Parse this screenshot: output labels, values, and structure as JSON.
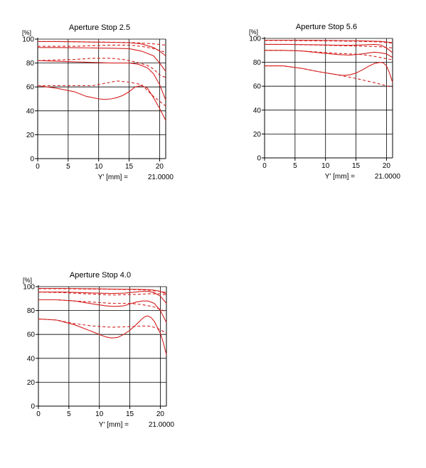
{
  "chart_data": [
    {
      "type": "line",
      "title": "Aperture Stop 2.5",
      "ylabel": "[%]",
      "xlabel": "Y' [mm] =",
      "xvalue_label": "21.0000",
      "xlim": [
        0,
        21
      ],
      "ylim": [
        0,
        100
      ],
      "xticks": [
        0,
        5,
        10,
        15,
        20
      ],
      "yticks": [
        0,
        20,
        40,
        60,
        80,
        100
      ],
      "grid": true,
      "color": "#d42020",
      "series": [
        {
          "style": "solid",
          "x": [
            0,
            3,
            6,
            9,
            12,
            15,
            17,
            19,
            20,
            21
          ],
          "y": [
            98,
            98,
            97.8,
            97.5,
            97.3,
            97,
            96,
            93,
            90,
            86
          ]
        },
        {
          "style": "dashed",
          "x": [
            0,
            3,
            6,
            9,
            12,
            15,
            17,
            19,
            21
          ],
          "y": [
            98,
            98,
            97.8,
            97.6,
            97.4,
            97.2,
            96.7,
            96,
            95
          ]
        },
        {
          "style": "solid",
          "x": [
            0,
            3,
            6,
            9,
            12,
            15,
            17,
            19,
            20,
            21
          ],
          "y": [
            93,
            93,
            92.8,
            92.6,
            92.4,
            92,
            90,
            86,
            80,
            73
          ]
        },
        {
          "style": "dashed",
          "x": [
            0,
            3,
            6,
            9,
            12,
            15,
            17,
            19,
            21
          ],
          "y": [
            94,
            94,
            94,
            94.5,
            95,
            95,
            94,
            92,
            89
          ]
        },
        {
          "style": "solid",
          "x": [
            0,
            3,
            6,
            9,
            12,
            15,
            16.5,
            18,
            19,
            20,
            21
          ],
          "y": [
            82,
            81.5,
            81,
            80.5,
            80,
            80,
            79,
            76,
            71,
            62,
            49
          ]
        },
        {
          "style": "dashed",
          "x": [
            0,
            3,
            6,
            9,
            12,
            14,
            16,
            18,
            19,
            20,
            21
          ],
          "y": [
            82,
            82.5,
            83,
            84,
            84,
            83,
            81,
            78,
            75,
            70,
            68
          ]
        },
        {
          "style": "solid",
          "x": [
            0,
            3,
            6,
            8,
            10,
            11,
            12,
            13,
            14,
            15,
            16,
            17,
            18,
            19,
            20,
            21
          ],
          "y": [
            61,
            59,
            56,
            52,
            50,
            49.5,
            50,
            51,
            53,
            56,
            60,
            61,
            59,
            51,
            42,
            32
          ]
        },
        {
          "style": "dashed",
          "x": [
            0,
            3,
            6,
            9,
            11,
            13,
            15,
            16,
            17,
            18,
            19,
            20,
            21
          ],
          "y": [
            61,
            61,
            61,
            61,
            63,
            65,
            64,
            63,
            62,
            57,
            52,
            48,
            44
          ]
        }
      ]
    },
    {
      "type": "line",
      "title": "Aperture Stop 5.6",
      "ylabel": "[%]",
      "xlabel": "Y' [mm] =",
      "xvalue_label": "21.0000",
      "xlim": [
        0,
        21
      ],
      "ylim": [
        0,
        100
      ],
      "xticks": [
        0,
        5,
        10,
        15,
        20
      ],
      "yticks": [
        0,
        20,
        40,
        60,
        80,
        100
      ],
      "grid": true,
      "color": "#d42020",
      "series": [
        {
          "style": "solid",
          "x": [
            0,
            4,
            8,
            12,
            16,
            19,
            21
          ],
          "y": [
            98.5,
            98.5,
            98.4,
            98.2,
            98,
            97.5,
            96.5
          ]
        },
        {
          "style": "dashed",
          "x": [
            0,
            4,
            8,
            12,
            16,
            19,
            21
          ],
          "y": [
            98.3,
            98.2,
            98,
            97.8,
            97.5,
            97,
            96
          ]
        },
        {
          "style": "solid",
          "x": [
            0,
            4,
            8,
            12,
            14,
            16,
            18,
            19,
            20,
            21
          ],
          "y": [
            95,
            95,
            94.7,
            94.3,
            94.2,
            94.5,
            95,
            94.5,
            92,
            88
          ]
        },
        {
          "style": "dashed",
          "x": [
            0,
            4,
            8,
            12,
            16,
            19,
            21
          ],
          "y": [
            95,
            95,
            94.5,
            94,
            93.5,
            93,
            92
          ]
        },
        {
          "style": "solid",
          "x": [
            0,
            3,
            6,
            9,
            12,
            14,
            16,
            18,
            19,
            20,
            21
          ],
          "y": [
            90,
            90,
            89.5,
            88,
            86.5,
            86,
            87,
            88.5,
            88,
            87,
            84
          ]
        },
        {
          "style": "dashed",
          "x": [
            0,
            3,
            6,
            9,
            12,
            14,
            16,
            18,
            20,
            21
          ],
          "y": [
            90,
            90,
            89.5,
            88.5,
            87.5,
            87,
            86.5,
            85,
            83,
            82
          ]
        },
        {
          "style": "solid",
          "x": [
            0,
            3,
            6,
            9,
            12,
            13,
            14,
            15,
            16,
            17,
            18,
            19,
            19.5,
            20,
            20.5,
            21
          ],
          "y": [
            77,
            77,
            75,
            72,
            69.5,
            69,
            69.5,
            71,
            73.5,
            76.5,
            79,
            80,
            79.5,
            77,
            71,
            63
          ]
        },
        {
          "style": "dashed",
          "x": [
            0,
            3,
            6,
            9,
            12,
            15,
            18,
            21
          ],
          "y": [
            77,
            77,
            75,
            72,
            69.5,
            66.5,
            63,
            59
          ]
        }
      ]
    },
    {
      "type": "line",
      "title": "Aperture Stop 4.0",
      "ylabel": "[%]",
      "xlabel": "Y' [mm] =",
      "xvalue_label": "21.0000",
      "xlim": [
        0,
        21
      ],
      "ylim": [
        0,
        100
      ],
      "xticks": [
        0,
        5,
        10,
        15,
        20
      ],
      "yticks": [
        0,
        20,
        40,
        60,
        80,
        100
      ],
      "grid": true,
      "color": "#d42020",
      "series": [
        {
          "style": "solid",
          "x": [
            0,
            4,
            8,
            12,
            16,
            18,
            19,
            20,
            21
          ],
          "y": [
            98.5,
            98.5,
            98.3,
            98,
            97.8,
            97.5,
            97,
            96,
            94
          ]
        },
        {
          "style": "dashed",
          "x": [
            0,
            4,
            8,
            12,
            16,
            18,
            20,
            21
          ],
          "y": [
            98.2,
            98.2,
            98,
            97.8,
            97.5,
            97,
            96,
            95
          ]
        },
        {
          "style": "solid",
          "x": [
            0,
            4,
            8,
            10,
            12,
            14,
            16,
            17,
            18,
            19,
            20,
            21
          ],
          "y": [
            95.5,
            95.5,
            94.8,
            94.5,
            94.3,
            94.5,
            95.5,
            96,
            96,
            95,
            92,
            86
          ]
        },
        {
          "style": "dashed",
          "x": [
            0,
            4,
            8,
            12,
            16,
            18,
            20,
            21
          ],
          "y": [
            95.5,
            95,
            94,
            93,
            93.5,
            94,
            94,
            93
          ]
        },
        {
          "style": "solid",
          "x": [
            0,
            3,
            6,
            9,
            11,
            12,
            13,
            14,
            15,
            16,
            17,
            18,
            19,
            20,
            21
          ],
          "y": [
            89,
            89,
            88,
            85.5,
            84,
            83.5,
            83.5,
            84,
            85.5,
            87,
            88,
            88,
            86,
            80,
            70
          ]
        },
        {
          "style": "dashed",
          "x": [
            0,
            3,
            6,
            9,
            12,
            15,
            17,
            19,
            21
          ],
          "y": [
            89,
            89,
            88,
            87,
            86,
            86,
            85,
            83,
            79
          ]
        },
        {
          "style": "solid",
          "x": [
            0,
            3,
            6,
            9,
            10,
            11,
            12,
            13,
            14,
            15,
            16,
            17,
            17.5,
            18,
            18.5,
            19,
            20,
            20.5,
            21
          ],
          "y": [
            73,
            72,
            68,
            62,
            60,
            58,
            57,
            57.5,
            60,
            63.5,
            68,
            73,
            75,
            75.5,
            74,
            71,
            61,
            53,
            43
          ]
        },
        {
          "style": "dashed",
          "x": [
            0,
            3,
            6,
            9,
            12,
            15,
            17,
            18,
            19,
            20,
            21
          ],
          "y": [
            73,
            72,
            69,
            67,
            66,
            66.5,
            67,
            67,
            66,
            64,
            61
          ]
        }
      ]
    }
  ]
}
